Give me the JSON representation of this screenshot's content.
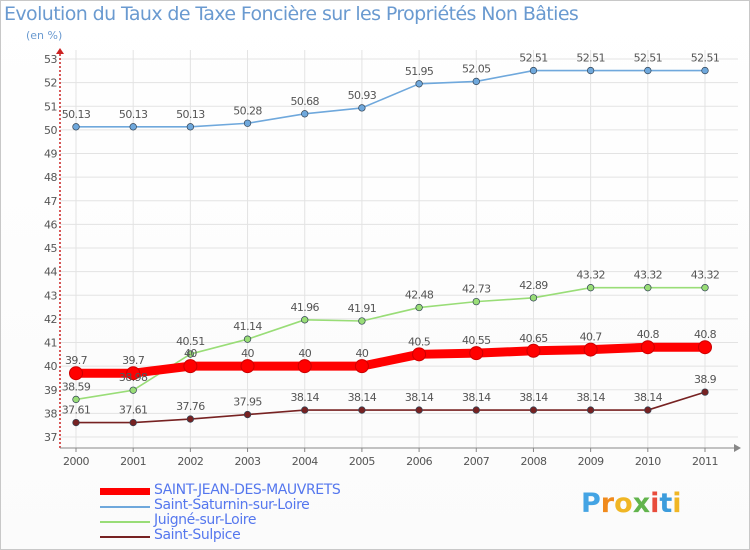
{
  "title": "Evolution du Taux de Taxe Foncière sur les Propriétés Non Bâties",
  "unit_label": "(en %)",
  "logo_text": "Proxiti",
  "chart_data": {
    "type": "line",
    "title": "Evolution du Taux de Taxe Foncière sur les Propriétés Non Bâties",
    "ylabel": "(en %)",
    "x": [
      "2000",
      "2001",
      "2002",
      "2003",
      "2004",
      "2005",
      "2006",
      "2007",
      "2008",
      "2009",
      "2010",
      "2011"
    ],
    "ylim": [
      37,
      53
    ],
    "yticks": [
      37,
      38,
      39,
      40,
      41,
      42,
      43,
      44,
      45,
      46,
      47,
      48,
      49,
      50,
      51,
      52,
      53
    ],
    "grid": true,
    "legend_position": "bottom-left",
    "series": [
      {
        "name": "SAINT-JEAN-DES-MAUVRETS",
        "color": "#ff0000",
        "values": [
          39.7,
          39.7,
          40,
          40,
          40,
          40,
          40.5,
          40.55,
          40.65,
          40.7,
          40.8,
          40.8
        ],
        "labels": [
          "39.7",
          "39.7",
          "40",
          "40",
          "40",
          "40",
          "40.5",
          "40.55",
          "40.65",
          "40.7",
          "40.8",
          "40.8"
        ]
      },
      {
        "name": "Saint-Saturnin-sur-Loire",
        "color": "#6fa8dc",
        "values": [
          50.13,
          50.13,
          50.13,
          50.28,
          50.68,
          50.93,
          51.95,
          52.05,
          52.51,
          52.51,
          52.51,
          52.51
        ],
        "labels": [
          "50.13",
          "50.13",
          "50.13",
          "50.28",
          "50.68",
          "50.93",
          "51.95",
          "52.05",
          "52.51",
          "52.51",
          "52.51",
          "52.51"
        ]
      },
      {
        "name": "Juigné-sur-Loire",
        "color": "#99dd77",
        "values": [
          38.59,
          38.98,
          40.51,
          41.14,
          41.96,
          41.91,
          42.48,
          42.73,
          42.89,
          43.32,
          43.32,
          43.32
        ],
        "labels": [
          "38.59",
          "38.98",
          "40.51",
          "41.14",
          "41.96",
          "41.91",
          "42.48",
          "42.73",
          "42.89",
          "43.32",
          "43.32",
          "43.32"
        ]
      },
      {
        "name": "Saint-Sulpice",
        "color": "#772222",
        "values": [
          37.61,
          37.61,
          37.76,
          37.95,
          38.14,
          38.14,
          38.14,
          38.14,
          38.14,
          38.14,
          38.14,
          38.9
        ],
        "labels": [
          "37.61",
          "37.61",
          "37.76",
          "37.95",
          "38.14",
          "38.14",
          "38.14",
          "38.14",
          "38.14",
          "38.14",
          "38.14",
          "38.9"
        ]
      }
    ]
  }
}
